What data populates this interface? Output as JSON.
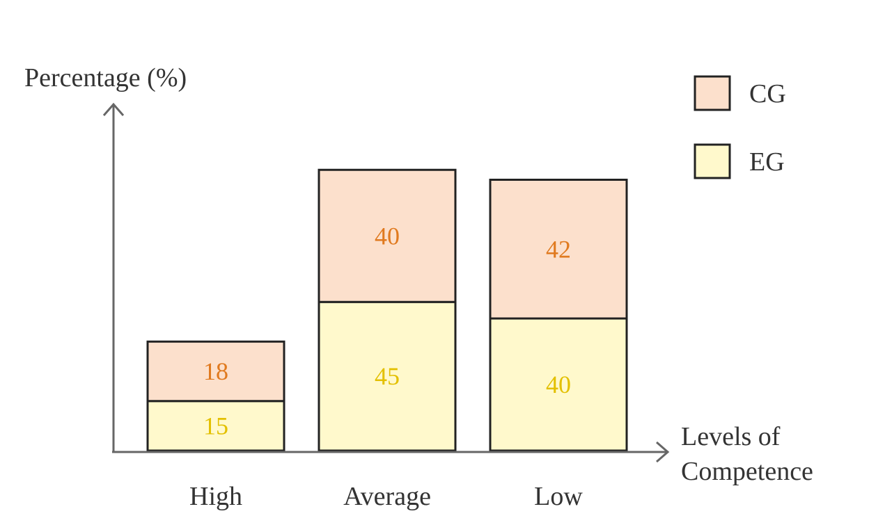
{
  "chart_data": {
    "type": "bar",
    "stacked": true,
    "ylabel": "Percentage (%)",
    "xlabel_lines": [
      "Levels of",
      "Competence"
    ],
    "categories": [
      "High",
      "Average",
      "Low"
    ],
    "series": [
      {
        "name": "EG",
        "values": [
          15,
          45,
          40
        ],
        "color": "#FFF9CC",
        "label_color": "#E3C000"
      },
      {
        "name": "CG",
        "values": [
          18,
          40,
          42
        ],
        "color": "#FCE0CC",
        "label_color": "#E07A1F"
      }
    ],
    "legend": {
      "placement": "top-right",
      "order": [
        "CG",
        "EG"
      ]
    },
    "grid": false,
    "axis_color": "#666666",
    "bar_border_color": "#222222"
  }
}
